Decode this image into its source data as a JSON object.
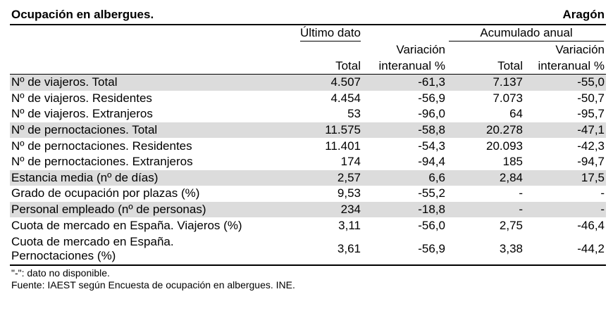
{
  "header": {
    "title": "Ocupación en albergues.",
    "region": "Aragón"
  },
  "columns": {
    "group1": "Último dato",
    "group2": "Acumulado anual",
    "variation_l1": "Variación",
    "variation_l2": "interanual %",
    "total": "Total"
  },
  "rows": [
    {
      "label": "Nº de viajeros. Total",
      "v1": "4.507",
      "v2": "-61,3",
      "v3": "7.137",
      "v4": "-55,0"
    },
    {
      "label": "Nº de viajeros. Residentes",
      "v1": "4.454",
      "v2": "-56,9",
      "v3": "7.073",
      "v4": "-50,7"
    },
    {
      "label": "Nº de viajeros. Extranjeros",
      "v1": "53",
      "v2": "-96,0",
      "v3": "64",
      "v4": "-95,7"
    },
    {
      "label": "Nº de pernoctaciones. Total",
      "v1": "11.575",
      "v2": "-58,8",
      "v3": "20.278",
      "v4": "-47,1"
    },
    {
      "label": "Nº de pernoctaciones. Residentes",
      "v1": "11.401",
      "v2": "-54,3",
      "v3": "20.093",
      "v4": "-42,3"
    },
    {
      "label": "Nº de pernoctaciones. Extranjeros",
      "v1": "174",
      "v2": "-94,4",
      "v3": "185",
      "v4": "-94,7"
    },
    {
      "label": "Estancia media (nº de días)",
      "v1": "2,57",
      "v2": "6,6",
      "v3": "2,84",
      "v4": "17,5"
    },
    {
      "label": "Grado de ocupación por plazas (%)",
      "v1": "9,53",
      "v2": "-55,2",
      "v3": "-",
      "v4": "-"
    },
    {
      "label": "Personal empleado (nº de personas)",
      "v1": "234",
      "v2": "-18,8",
      "v3": "-",
      "v4": "-"
    },
    {
      "label": "Cuota de mercado en España. Viajeros (%)",
      "v1": "3,11",
      "v2": "-56,0",
      "v3": "2,75",
      "v4": "-46,4"
    },
    {
      "label_l1": "Cuota de mercado en España.",
      "label_l2": "Pernoctaciones (%)",
      "v1": "3,61",
      "v2": "-56,9",
      "v3": "3,38",
      "v4": "-44,2"
    }
  ],
  "footer": {
    "note": "\"-\": dato no disponible.",
    "source": "Fuente: IAEST según Encuesta de ocupación en albergues. INE."
  }
}
